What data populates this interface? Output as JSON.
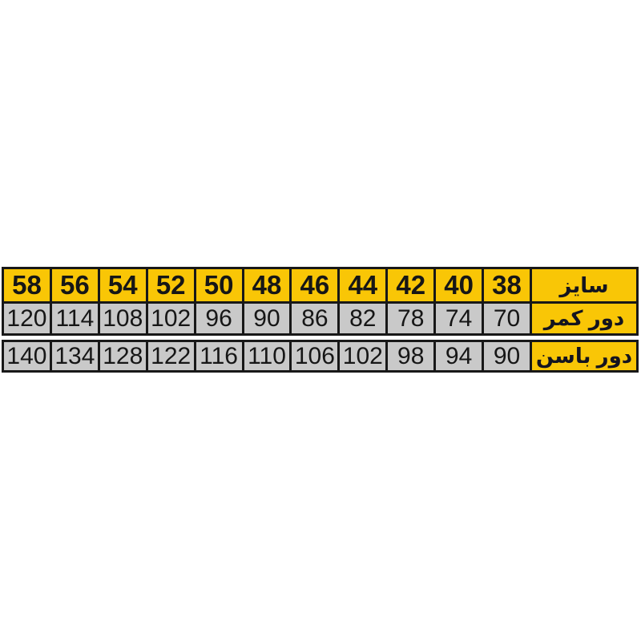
{
  "chart_data": {
    "type": "table",
    "title": "",
    "rows": [
      {
        "label": "سایز",
        "values": [
          58,
          56,
          54,
          52,
          50,
          48,
          46,
          44,
          42,
          40,
          38
        ]
      },
      {
        "label": "دور کمر",
        "values": [
          120,
          114,
          108,
          102,
          96,
          90,
          86,
          82,
          78,
          74,
          70
        ]
      },
      {
        "label": "دور باسن",
        "values": [
          140,
          134,
          128,
          122,
          116,
          110,
          106,
          102,
          98,
          94,
          90
        ]
      }
    ],
    "layout": "rtl, label column on right, sizes descending left-to-right, header row yellow, data rows gray, white gap between second and third row"
  },
  "table": {
    "size_label": "سایز",
    "waist_label": "دور کمر",
    "hip_label": "دور باسن",
    "sizes": [
      "58",
      "56",
      "54",
      "52",
      "50",
      "48",
      "46",
      "44",
      "42",
      "40",
      "38"
    ],
    "waist": [
      "120",
      "114",
      "108",
      "102",
      "96",
      "90",
      "86",
      "82",
      "78",
      "74",
      "70"
    ],
    "hip": [
      "140",
      "134",
      "128",
      "122",
      "116",
      "110",
      "106",
      "102",
      "98",
      "94",
      "90"
    ]
  },
  "colors": {
    "header_bg": "#f9c606",
    "label_bg": "#f9c606",
    "data_bg": "#c9c9c9",
    "border": "#181818",
    "number_color": "#161616",
    "label_color": "#14141f"
  }
}
